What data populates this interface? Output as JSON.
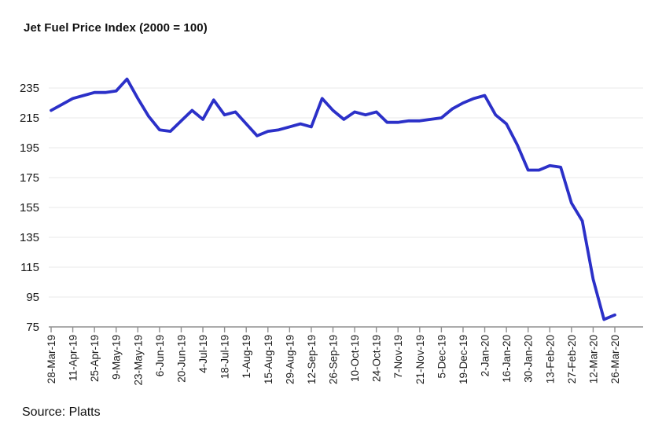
{
  "header": {
    "title": "Jet Fuel Price Index (2000 = 100)"
  },
  "footer": {
    "source": "Source: Platts"
  },
  "chart_data": {
    "type": "line",
    "title": "Jet Fuel Price Index (2000 = 100)",
    "series_name": "Jet Fuel Price Index",
    "x": [
      "28-Mar-19",
      "4-Apr-19",
      "11-Apr-19",
      "18-Apr-19",
      "25-Apr-19",
      "2-May-19",
      "9-May-19",
      "16-May-19",
      "23-May-19",
      "30-May-19",
      "6-Jun-19",
      "13-Jun-19",
      "20-Jun-19",
      "27-Jun-19",
      "4-Jul-19",
      "11-Jul-19",
      "18-Jul-19",
      "25-Jul-19",
      "1-Aug-19",
      "8-Aug-19",
      "15-Aug-19",
      "22-Aug-19",
      "29-Aug-19",
      "5-Sep-19",
      "12-Sep-19",
      "19-Sep-19",
      "26-Sep-19",
      "3-Oct-19",
      "10-Oct-19",
      "17-Oct-19",
      "24-Oct-19",
      "31-Oct-19",
      "7-Nov-19",
      "14-Nov-19",
      "21-Nov-19",
      "28-Nov-19",
      "5-Dec-19",
      "12-Dec-19",
      "19-Dec-19",
      "26-Dec-19",
      "2-Jan-20",
      "9-Jan-20",
      "16-Jan-20",
      "23-Jan-20",
      "30-Jan-20",
      "6-Feb-20",
      "13-Feb-20",
      "20-Feb-20",
      "27-Feb-20",
      "5-Mar-20",
      "12-Mar-20",
      "19-Mar-20",
      "26-Mar-20"
    ],
    "values": [
      220,
      224,
      228,
      230,
      232,
      232,
      233,
      241,
      228,
      216,
      207,
      206,
      213,
      220,
      214,
      227,
      217,
      219,
      211,
      203,
      206,
      207,
      209,
      211,
      209,
      228,
      220,
      214,
      219,
      217,
      219,
      212,
      212,
      213,
      213,
      214,
      215,
      221,
      225,
      228,
      230,
      217,
      211,
      197,
      180,
      180,
      183,
      182,
      158,
      146,
      107,
      80,
      83
    ],
    "x_tick_labels": [
      "28-Mar-19",
      "11-Apr-19",
      "25-Apr-19",
      "9-May-19",
      "23-May-19",
      "6-Jun-19",
      "20-Jun-19",
      "4-Jul-19",
      "18-Jul-19",
      "1-Aug-19",
      "15-Aug-19",
      "29-Aug-19",
      "12-Sep-19",
      "26-Sep-19",
      "10-Oct-19",
      "24-Oct-19",
      "7-Nov-19",
      "21-Nov-19",
      "5-Dec-19",
      "19-Dec-19",
      "2-Jan-20",
      "16-Jan-20",
      "30-Jan-20",
      "13-Feb-20",
      "27-Feb-20",
      "12-Mar-20",
      "26-Mar-20"
    ],
    "y_ticks": [
      235,
      215,
      195,
      175,
      155,
      135,
      115,
      95,
      75
    ],
    "ylim": [
      75,
      245
    ],
    "xlabel": "",
    "ylabel": "",
    "grid": "horizontal",
    "legend": "none",
    "source": "Source: Platts",
    "colors": {
      "line": "#2b30c8",
      "grid": "#ededed",
      "axis": "#8f8f8f",
      "text": "#1a1a1a"
    }
  }
}
